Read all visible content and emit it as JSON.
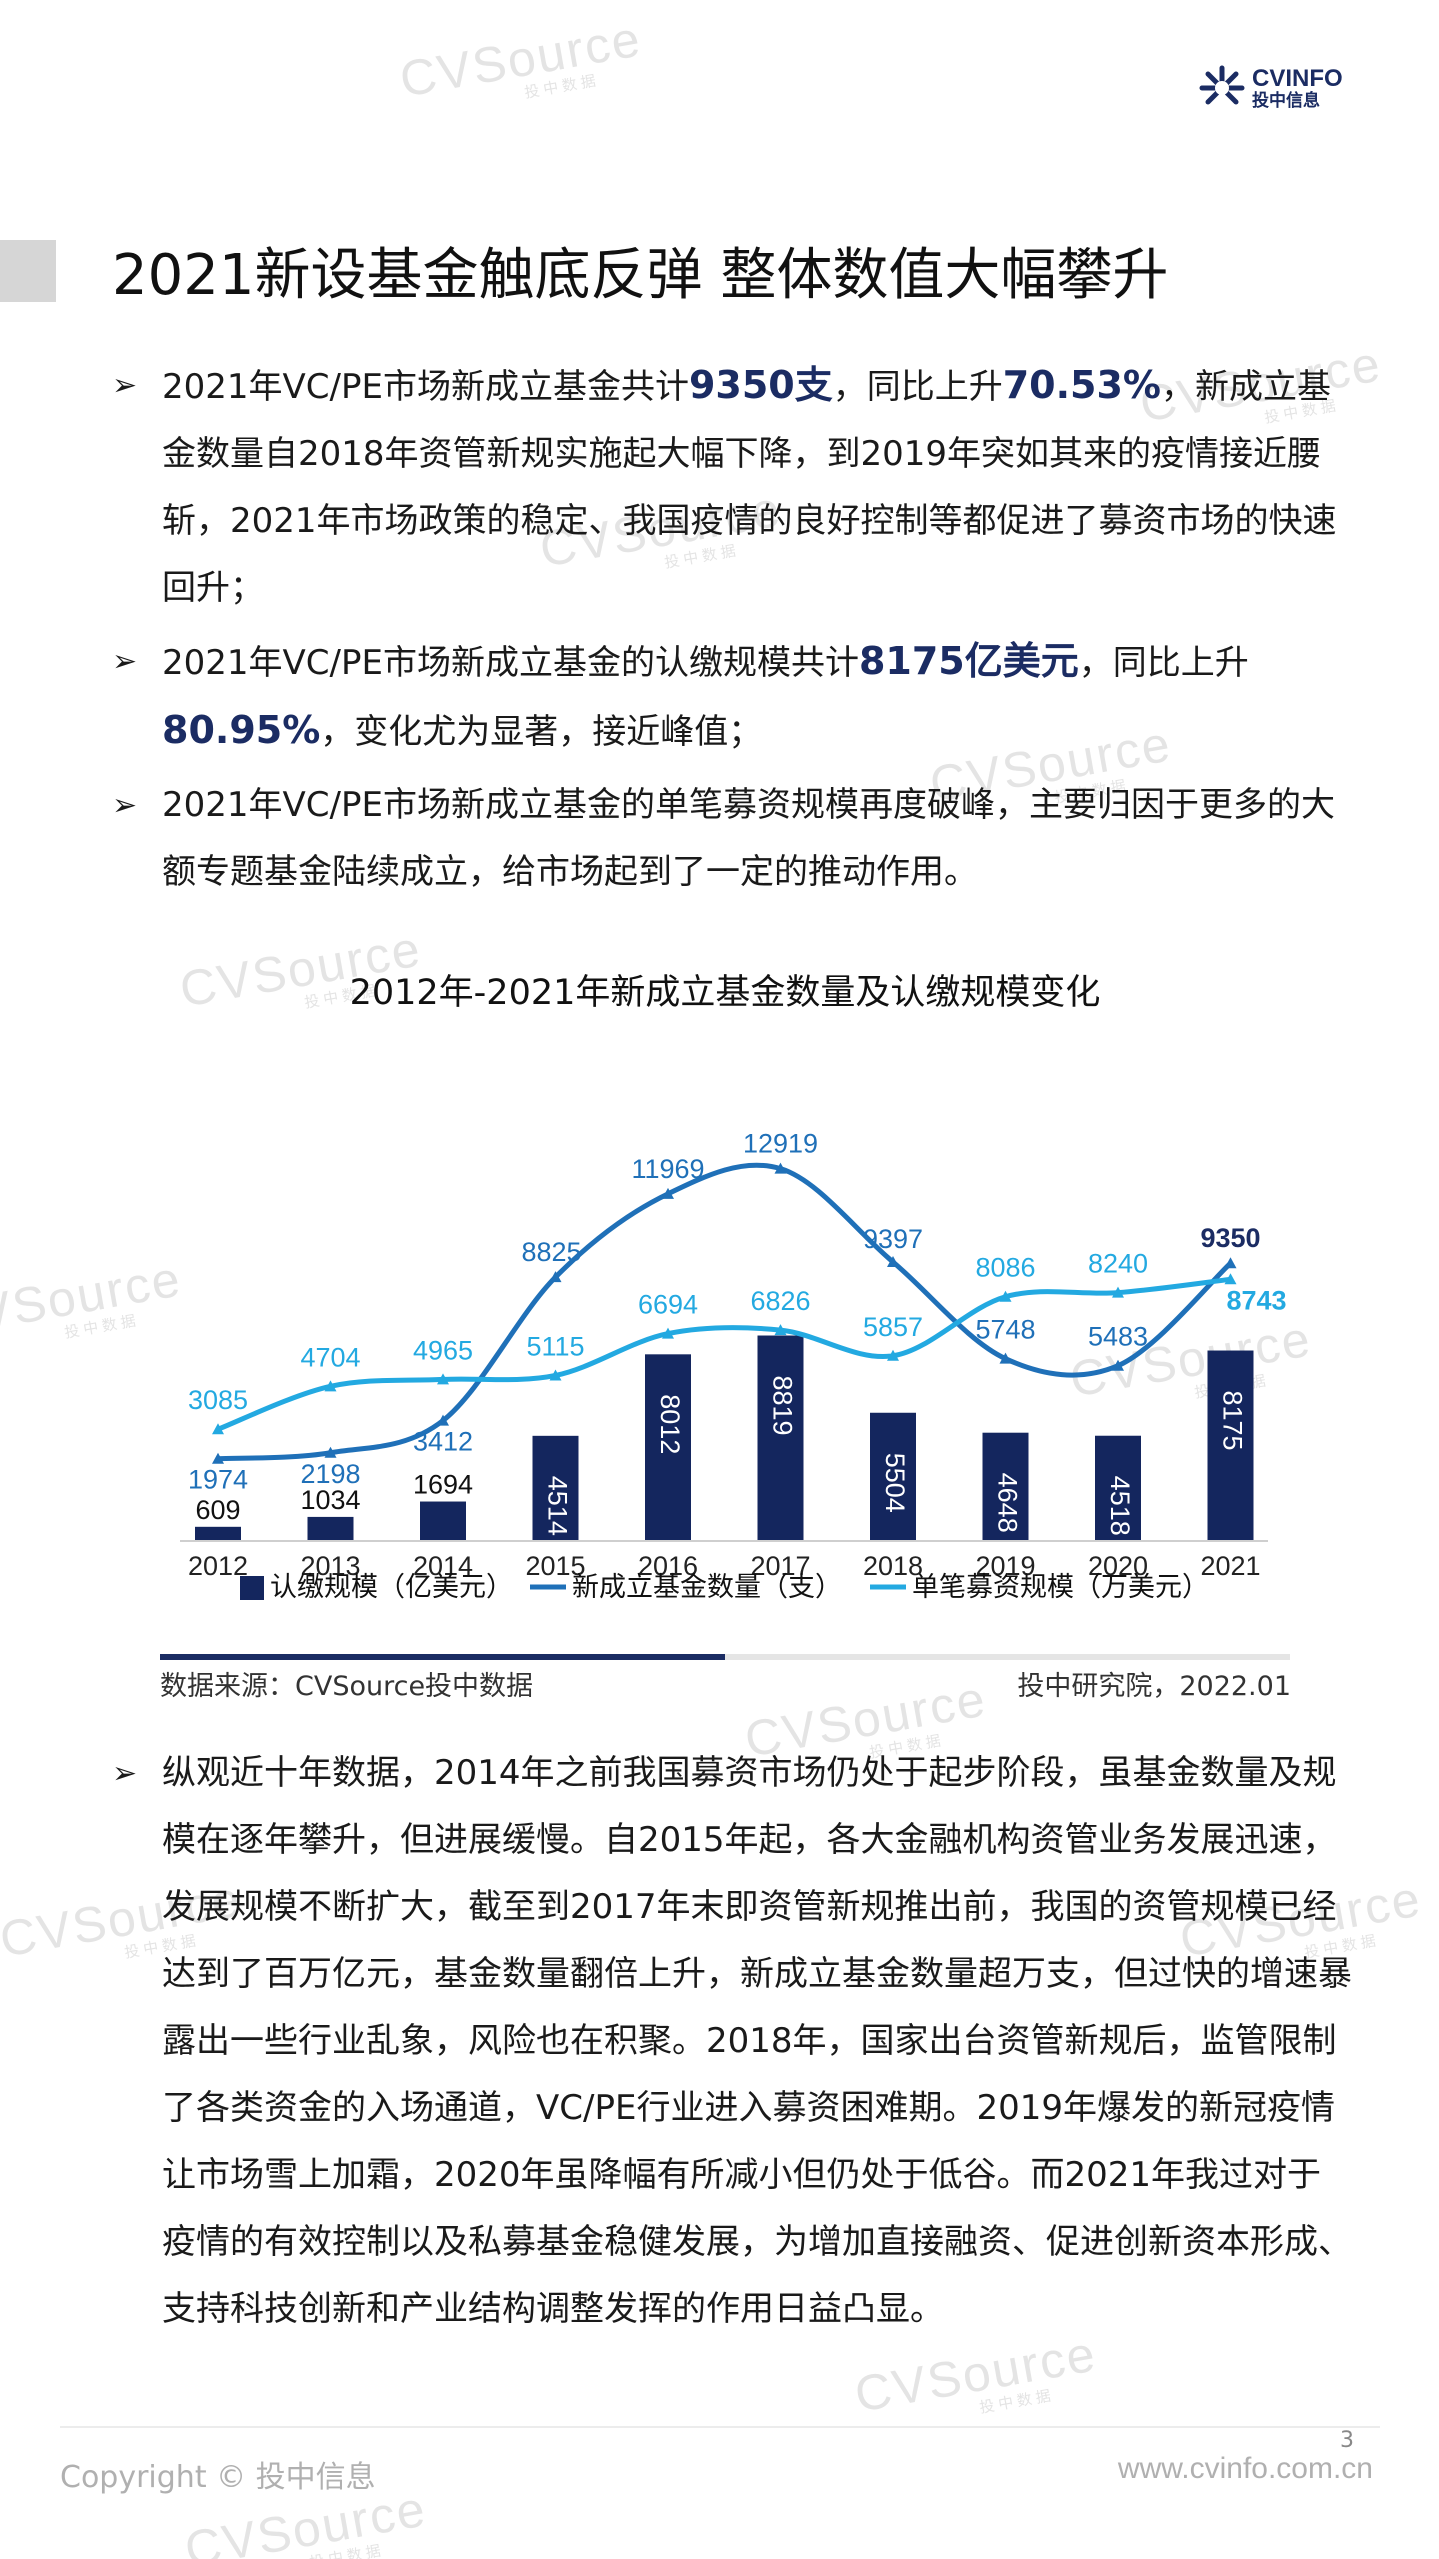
{
  "header": {
    "logo_line1": "CVINFO",
    "logo_line2": "投中信息",
    "watermark_brand": "CVSource",
    "watermark_sub": "投中数据"
  },
  "title": "2021新设基金触底反弹 整体数值大幅攀升",
  "bullets": [
    {
      "parts": [
        "2021年VC/PE市场新成立基金共计",
        "9350支",
        "，同比上升",
        "70.53%",
        "，新成立基金数量自2018年资管新规实施起大幅下降，到2019年突如其来的疫情接近腰斩，2021年市场政策的稳定、我国疫情的良好控制等都促进了募资市场的快速回升；"
      ]
    },
    {
      "parts": [
        "2021年VC/PE市场新成立基金的认缴规模共计",
        "8175亿美元",
        "，同比上升",
        "80.95%",
        "，变化尤为显著，接近峰值；"
      ]
    },
    {
      "parts": [
        "2021年VC/PE市场新成立基金的单笔募资规模再度破峰，主要归因于更多的大额专题基金陆续成立，给市场起到了一定的推动作用。",
        "",
        "",
        "",
        ""
      ]
    }
  ],
  "chart_data": {
    "type": "bar",
    "title": "2012年-2021年新成立基金数量及认缴规模变化",
    "categories": [
      "2012",
      "2013",
      "2014",
      "2015",
      "2016",
      "2017",
      "2018",
      "2019",
      "2020",
      "2021"
    ],
    "series": [
      {
        "name": "认缴规模（亿美元）",
        "kind": "bar",
        "color": "#14265e",
        "values": [
          609,
          1034,
          1694,
          4514,
          8012,
          8819,
          5504,
          4648,
          4518,
          8175
        ]
      },
      {
        "name": "新成立基金数量（支）",
        "kind": "line",
        "color": "#1f70b8",
        "values": [
          1974,
          2198,
          3412,
          8825,
          11969,
          12919,
          9397,
          5748,
          5483,
          9350
        ]
      },
      {
        "name": "单笔募资规模（万美元）",
        "kind": "line",
        "color": "#23a9e1",
        "values": [
          3085,
          4704,
          4965,
          5115,
          6694,
          6826,
          5857,
          8086,
          8240,
          8743
        ]
      }
    ],
    "legend": "bottom",
    "grid": false
  },
  "source": {
    "left": "数据来源：CVSource投中数据",
    "right": "投中研究院，2022.01"
  },
  "paragraph": "纵观近十年数据，2014年之前我国募资市场仍处于起步阶段，虽基金数量及规模在逐年攀升，但进展缓慢。自2015年起，各大金融机构资管业务发展迅速，发展规模不断扩大，截至到2017年末即资管新规推出前，我国的资管规模已经达到了百万亿元，基金数量翻倍上升，新成立基金数量超万支，但过快的增速暴露出一些行业乱象，风险也在积聚。2018年，国家出台资管新规后，监管限制了各类资金的入场通道，VC/PE行业进入募资困难期。2019年爆发的新冠疫情让市场雪上加霜，2020年虽降幅有所减小但仍处于低谷。而2021年我过对于疫情的有效控制以及私募基金稳健发展，为增加直接融资、促进创新资本形成、支持科技创新和产业结构调整发挥的作用日益凸显。",
  "footer": {
    "page": "3",
    "copyright": "Copyright © 投中信息",
    "website": "www.cvinfo.com.cn"
  },
  "icons": {
    "bullet_marker": "arrowhead-icon",
    "logo": "cvinfo-burst-icon"
  }
}
